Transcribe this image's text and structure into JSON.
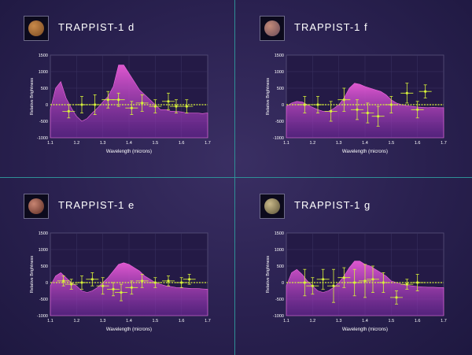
{
  "chart_data": [
    {
      "type": "line",
      "title": "TRAPPIST-1 d",
      "planet_icon": "planet-d-icon",
      "planet_colors": [
        "#c98a4a",
        "#7a4a22"
      ],
      "xlabel": "Wavelength (microns)",
      "ylabel": "Relative Brightness",
      "xlim": [
        1.1,
        1.7
      ],
      "ylim": [
        -1000,
        1500
      ],
      "xticks": [
        "1.1",
        "1.2",
        "1.3",
        "1.4",
        "1.5",
        "1.6",
        "1.7"
      ],
      "yticks": [
        "-1000",
        "-500",
        "0",
        "500",
        "1000",
        "1500"
      ],
      "model_spectrum": {
        "x": [
          1.1,
          1.12,
          1.14,
          1.16,
          1.18,
          1.2,
          1.22,
          1.24,
          1.26,
          1.28,
          1.3,
          1.32,
          1.34,
          1.36,
          1.38,
          1.4,
          1.42,
          1.44,
          1.46,
          1.48,
          1.5,
          1.52,
          1.54,
          1.56,
          1.58,
          1.6,
          1.62,
          1.64,
          1.66,
          1.68,
          1.7
        ],
        "y": [
          -150,
          500,
          700,
          200,
          -100,
          -350,
          -500,
          -420,
          -250,
          -100,
          80,
          250,
          550,
          1200,
          1200,
          950,
          700,
          450,
          300,
          150,
          0,
          -150,
          -150,
          -200,
          -200,
          -220,
          -250,
          -250,
          -250,
          -270,
          -250
        ]
      },
      "observations": {
        "x": [
          1.17,
          1.22,
          1.27,
          1.32,
          1.36,
          1.41,
          1.45,
          1.5,
          1.55,
          1.58,
          1.62
        ],
        "y": [
          -200,
          0,
          0,
          150,
          150,
          -100,
          50,
          -50,
          100,
          -50,
          -50
        ],
        "err": [
          200,
          250,
          300,
          250,
          200,
          200,
          250,
          200,
          250,
          200,
          200
        ]
      }
    },
    {
      "type": "line",
      "title": "TRAPPIST-1 f",
      "planet_icon": "planet-f-icon",
      "planet_colors": [
        "#c48a78",
        "#6a4a58"
      ],
      "xlabel": "Wavelength (microns)",
      "ylabel": "Relative Brightness",
      "xlim": [
        1.1,
        1.7
      ],
      "ylim": [
        -1000,
        1500
      ],
      "xticks": [
        "1.1",
        "1.2",
        "1.3",
        "1.4",
        "1.5",
        "1.6",
        "1.7"
      ],
      "yticks": [
        "-1000",
        "-500",
        "0",
        "500",
        "1000",
        "1500"
      ],
      "model_spectrum": {
        "x": [
          1.1,
          1.12,
          1.14,
          1.16,
          1.18,
          1.2,
          1.22,
          1.24,
          1.26,
          1.28,
          1.3,
          1.32,
          1.34,
          1.36,
          1.38,
          1.4,
          1.42,
          1.44,
          1.46,
          1.48,
          1.5,
          1.52,
          1.54,
          1.56,
          1.58,
          1.6,
          1.62,
          1.64,
          1.66,
          1.68,
          1.7
        ],
        "y": [
          -50,
          50,
          100,
          80,
          0,
          -80,
          -150,
          -200,
          -200,
          -120,
          0,
          200,
          500,
          650,
          620,
          550,
          500,
          450,
          400,
          300,
          150,
          50,
          0,
          -30,
          -50,
          -70,
          -80,
          -90,
          -80,
          -90,
          -90
        ]
      },
      "observations": {
        "x": [
          1.17,
          1.22,
          1.27,
          1.32,
          1.37,
          1.41,
          1.45,
          1.5,
          1.56,
          1.6,
          1.63
        ],
        "y": [
          0,
          0,
          -200,
          150,
          -150,
          -250,
          -350,
          0,
          350,
          -150,
          400
        ],
        "err": [
          250,
          250,
          300,
          350,
          300,
          300,
          300,
          250,
          300,
          250,
          200
        ]
      }
    },
    {
      "type": "line",
      "title": "TRAPPIST-1 e",
      "planet_icon": "planet-e-icon",
      "planet_colors": [
        "#c88572",
        "#5a2a22"
      ],
      "xlabel": "Wavelength (microns)",
      "ylabel": "Relative Brightness",
      "xlim": [
        1.1,
        1.7
      ],
      "ylim": [
        -1000,
        1500
      ],
      "xticks": [
        "1.1",
        "1.2",
        "1.3",
        "1.4",
        "1.5",
        "1.6",
        "1.7"
      ],
      "yticks": [
        "-1000",
        "-500",
        "0",
        "500",
        "1000",
        "1500"
      ],
      "model_spectrum": {
        "x": [
          1.1,
          1.12,
          1.14,
          1.16,
          1.18,
          1.2,
          1.22,
          1.24,
          1.26,
          1.28,
          1.3,
          1.32,
          1.34,
          1.36,
          1.38,
          1.4,
          1.42,
          1.44,
          1.46,
          1.48,
          1.5,
          1.52,
          1.54,
          1.56,
          1.58,
          1.6,
          1.62,
          1.64,
          1.66,
          1.68,
          1.7
        ],
        "y": [
          -100,
          200,
          300,
          150,
          0,
          -100,
          -250,
          -300,
          -250,
          -150,
          0,
          150,
          350,
          550,
          600,
          550,
          450,
          350,
          200,
          100,
          0,
          -50,
          -100,
          -120,
          -150,
          -160,
          -170,
          -180,
          -180,
          -190,
          -200
        ]
      },
      "observations": {
        "x": [
          1.15,
          1.18,
          1.22,
          1.26,
          1.3,
          1.34,
          1.37,
          1.41,
          1.45,
          1.5,
          1.55,
          1.6,
          1.63
        ],
        "y": [
          50,
          -50,
          0,
          100,
          -100,
          -200,
          -300,
          -150,
          50,
          0,
          50,
          0,
          100
        ],
        "err": [
          150,
          150,
          200,
          200,
          250,
          200,
          250,
          200,
          200,
          150,
          150,
          150,
          150
        ]
      }
    },
    {
      "type": "line",
      "title": "TRAPPIST-1 g",
      "planet_icon": "planet-g-icon",
      "planet_colors": [
        "#c9b98a",
        "#5a5236"
      ],
      "xlabel": "Wavelength (microns)",
      "ylabel": "Relative Brightness",
      "xlim": [
        1.1,
        1.7
      ],
      "ylim": [
        -1000,
        1500
      ],
      "xticks": [
        "1.1",
        "1.2",
        "1.3",
        "1.4",
        "1.5",
        "1.6",
        "1.7"
      ],
      "yticks": [
        "-1000",
        "-500",
        "0",
        "500",
        "1000",
        "1500"
      ],
      "model_spectrum": {
        "x": [
          1.1,
          1.12,
          1.14,
          1.16,
          1.18,
          1.2,
          1.22,
          1.24,
          1.26,
          1.28,
          1.3,
          1.32,
          1.34,
          1.36,
          1.38,
          1.4,
          1.42,
          1.44,
          1.46,
          1.48,
          1.5,
          1.52,
          1.54,
          1.56,
          1.58,
          1.6,
          1.62,
          1.64,
          1.66,
          1.68,
          1.7
        ],
        "y": [
          -100,
          300,
          400,
          250,
          50,
          -100,
          -250,
          -300,
          -250,
          -150,
          0,
          200,
          450,
          650,
          650,
          550,
          500,
          400,
          300,
          200,
          50,
          0,
          -50,
          -80,
          -100,
          -120,
          -130,
          -140,
          -140,
          -150,
          -150
        ]
      },
      "observations": {
        "x": [
          1.17,
          1.2,
          1.24,
          1.28,
          1.32,
          1.36,
          1.4,
          1.43,
          1.47,
          1.52,
          1.56,
          1.6
        ],
        "y": [
          0,
          -100,
          100,
          -100,
          150,
          0,
          50,
          100,
          0,
          -450,
          -50,
          0
        ],
        "err": [
          400,
          250,
          300,
          500,
          300,
          400,
          500,
          400,
          300,
          200,
          150,
          250
        ]
      }
    }
  ]
}
